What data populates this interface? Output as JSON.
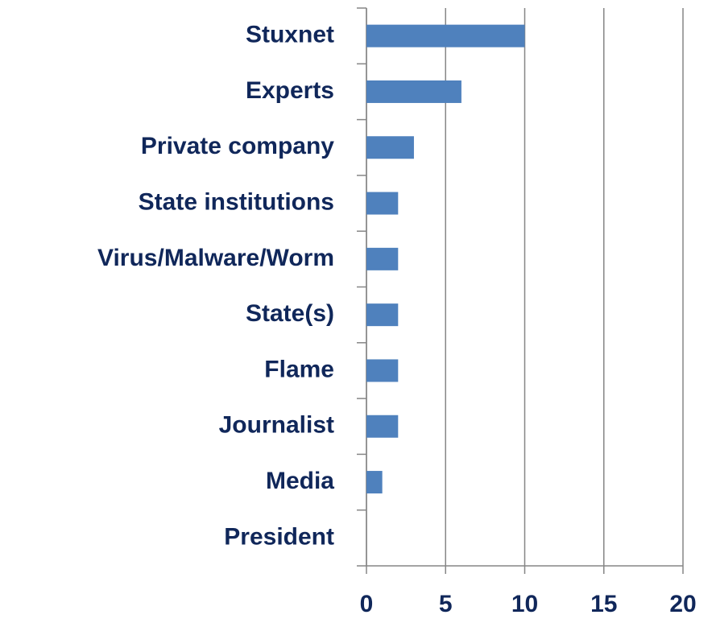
{
  "chart_data": {
    "type": "bar",
    "orientation": "horizontal",
    "categories": [
      "Stuxnet",
      "Experts",
      "Private company",
      "State institutions",
      "Virus/Malware/Worm",
      "State(s)",
      "Flame",
      "Journalist",
      "Media",
      "President"
    ],
    "values": [
      10,
      6,
      3,
      2,
      2,
      2,
      2,
      2,
      1,
      0
    ],
    "color": "#4f81bd",
    "xlim": [
      0,
      20
    ],
    "xticks": [
      0,
      5,
      10,
      15,
      20
    ],
    "grid": true
  }
}
